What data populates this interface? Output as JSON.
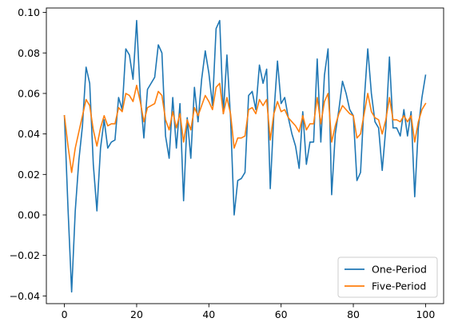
{
  "chart_data": {
    "type": "line",
    "title": "",
    "xlabel": "",
    "ylabel": "",
    "xlim": [
      -5,
      105
    ],
    "ylim": [
      -0.0438,
      0.1022
    ],
    "xticks": [
      0,
      20,
      40,
      60,
      80,
      100
    ],
    "xtick_labels": [
      "0",
      "20",
      "40",
      "60",
      "80",
      "100"
    ],
    "yticks": [
      -0.04,
      -0.02,
      0.0,
      0.02,
      0.04,
      0.06,
      0.08,
      0.1
    ],
    "ytick_labels": [
      "−0.04",
      "−0.02",
      "0.00",
      "0.02",
      "0.04",
      "0.06",
      "0.08",
      "0.10"
    ],
    "grid": false,
    "legend_position": "lower-right",
    "x": [
      0,
      1,
      2,
      3,
      4,
      5,
      6,
      7,
      8,
      9,
      10,
      11,
      12,
      13,
      14,
      15,
      16,
      17,
      18,
      19,
      20,
      21,
      22,
      23,
      24,
      25,
      26,
      27,
      28,
      29,
      30,
      31,
      32,
      33,
      34,
      35,
      36,
      37,
      38,
      39,
      40,
      41,
      42,
      43,
      44,
      45,
      46,
      47,
      48,
      49,
      50,
      51,
      52,
      53,
      54,
      55,
      56,
      57,
      58,
      59,
      60,
      61,
      62,
      63,
      64,
      65,
      66,
      67,
      68,
      69,
      70,
      71,
      72,
      73,
      74,
      75,
      76,
      77,
      78,
      79,
      80,
      81,
      82,
      83,
      84,
      85,
      86,
      87,
      88,
      89,
      90,
      91,
      92,
      93,
      94,
      95,
      96,
      97,
      98,
      99,
      100
    ],
    "series": [
      {
        "name": "One-Period",
        "color": "#1f77b4",
        "values": [
          0.049,
          0.003,
          -0.038,
          0.002,
          0.027,
          0.044,
          0.073,
          0.065,
          0.025,
          0.002,
          0.033,
          0.047,
          0.033,
          0.036,
          0.037,
          0.058,
          0.052,
          0.082,
          0.079,
          0.067,
          0.096,
          0.059,
          0.038,
          0.062,
          0.065,
          0.068,
          0.084,
          0.08,
          0.039,
          0.028,
          0.058,
          0.033,
          0.055,
          0.007,
          0.048,
          0.028,
          0.063,
          0.046,
          0.067,
          0.081,
          0.07,
          0.054,
          0.092,
          0.096,
          0.05,
          0.079,
          0.048,
          0.0,
          0.017,
          0.018,
          0.021,
          0.059,
          0.061,
          0.052,
          0.074,
          0.065,
          0.072,
          0.013,
          0.05,
          0.076,
          0.055,
          0.058,
          0.048,
          0.04,
          0.034,
          0.023,
          0.051,
          0.025,
          0.036,
          0.036,
          0.077,
          0.036,
          0.069,
          0.082,
          0.01,
          0.04,
          0.052,
          0.066,
          0.06,
          0.052,
          0.049,
          0.017,
          0.021,
          0.056,
          0.082,
          0.06,
          0.046,
          0.043,
          0.022,
          0.043,
          0.078,
          0.043,
          0.043,
          0.039,
          0.052,
          0.039,
          0.051,
          0.009,
          0.043,
          0.058,
          0.069
        ]
      },
      {
        "name": "Five-Period",
        "color": "#ff7f0e",
        "values": [
          0.049,
          0.034,
          0.021,
          0.033,
          0.041,
          0.049,
          0.057,
          0.054,
          0.042,
          0.034,
          0.043,
          0.049,
          0.044,
          0.045,
          0.045,
          0.053,
          0.051,
          0.06,
          0.059,
          0.056,
          0.064,
          0.056,
          0.046,
          0.053,
          0.054,
          0.055,
          0.061,
          0.059,
          0.047,
          0.042,
          0.051,
          0.043,
          0.05,
          0.036,
          0.047,
          0.042,
          0.053,
          0.049,
          0.054,
          0.059,
          0.056,
          0.052,
          0.063,
          0.065,
          0.05,
          0.058,
          0.05,
          0.033,
          0.038,
          0.038,
          0.039,
          0.052,
          0.053,
          0.05,
          0.057,
          0.054,
          0.057,
          0.037,
          0.05,
          0.056,
          0.051,
          0.052,
          0.048,
          0.046,
          0.044,
          0.041,
          0.049,
          0.042,
          0.045,
          0.045,
          0.058,
          0.045,
          0.056,
          0.06,
          0.036,
          0.044,
          0.05,
          0.054,
          0.052,
          0.05,
          0.049,
          0.038,
          0.04,
          0.05,
          0.06,
          0.051,
          0.048,
          0.047,
          0.04,
          0.047,
          0.058,
          0.047,
          0.047,
          0.046,
          0.049,
          0.046,
          0.049,
          0.036,
          0.046,
          0.052,
          0.055
        ]
      }
    ]
  }
}
